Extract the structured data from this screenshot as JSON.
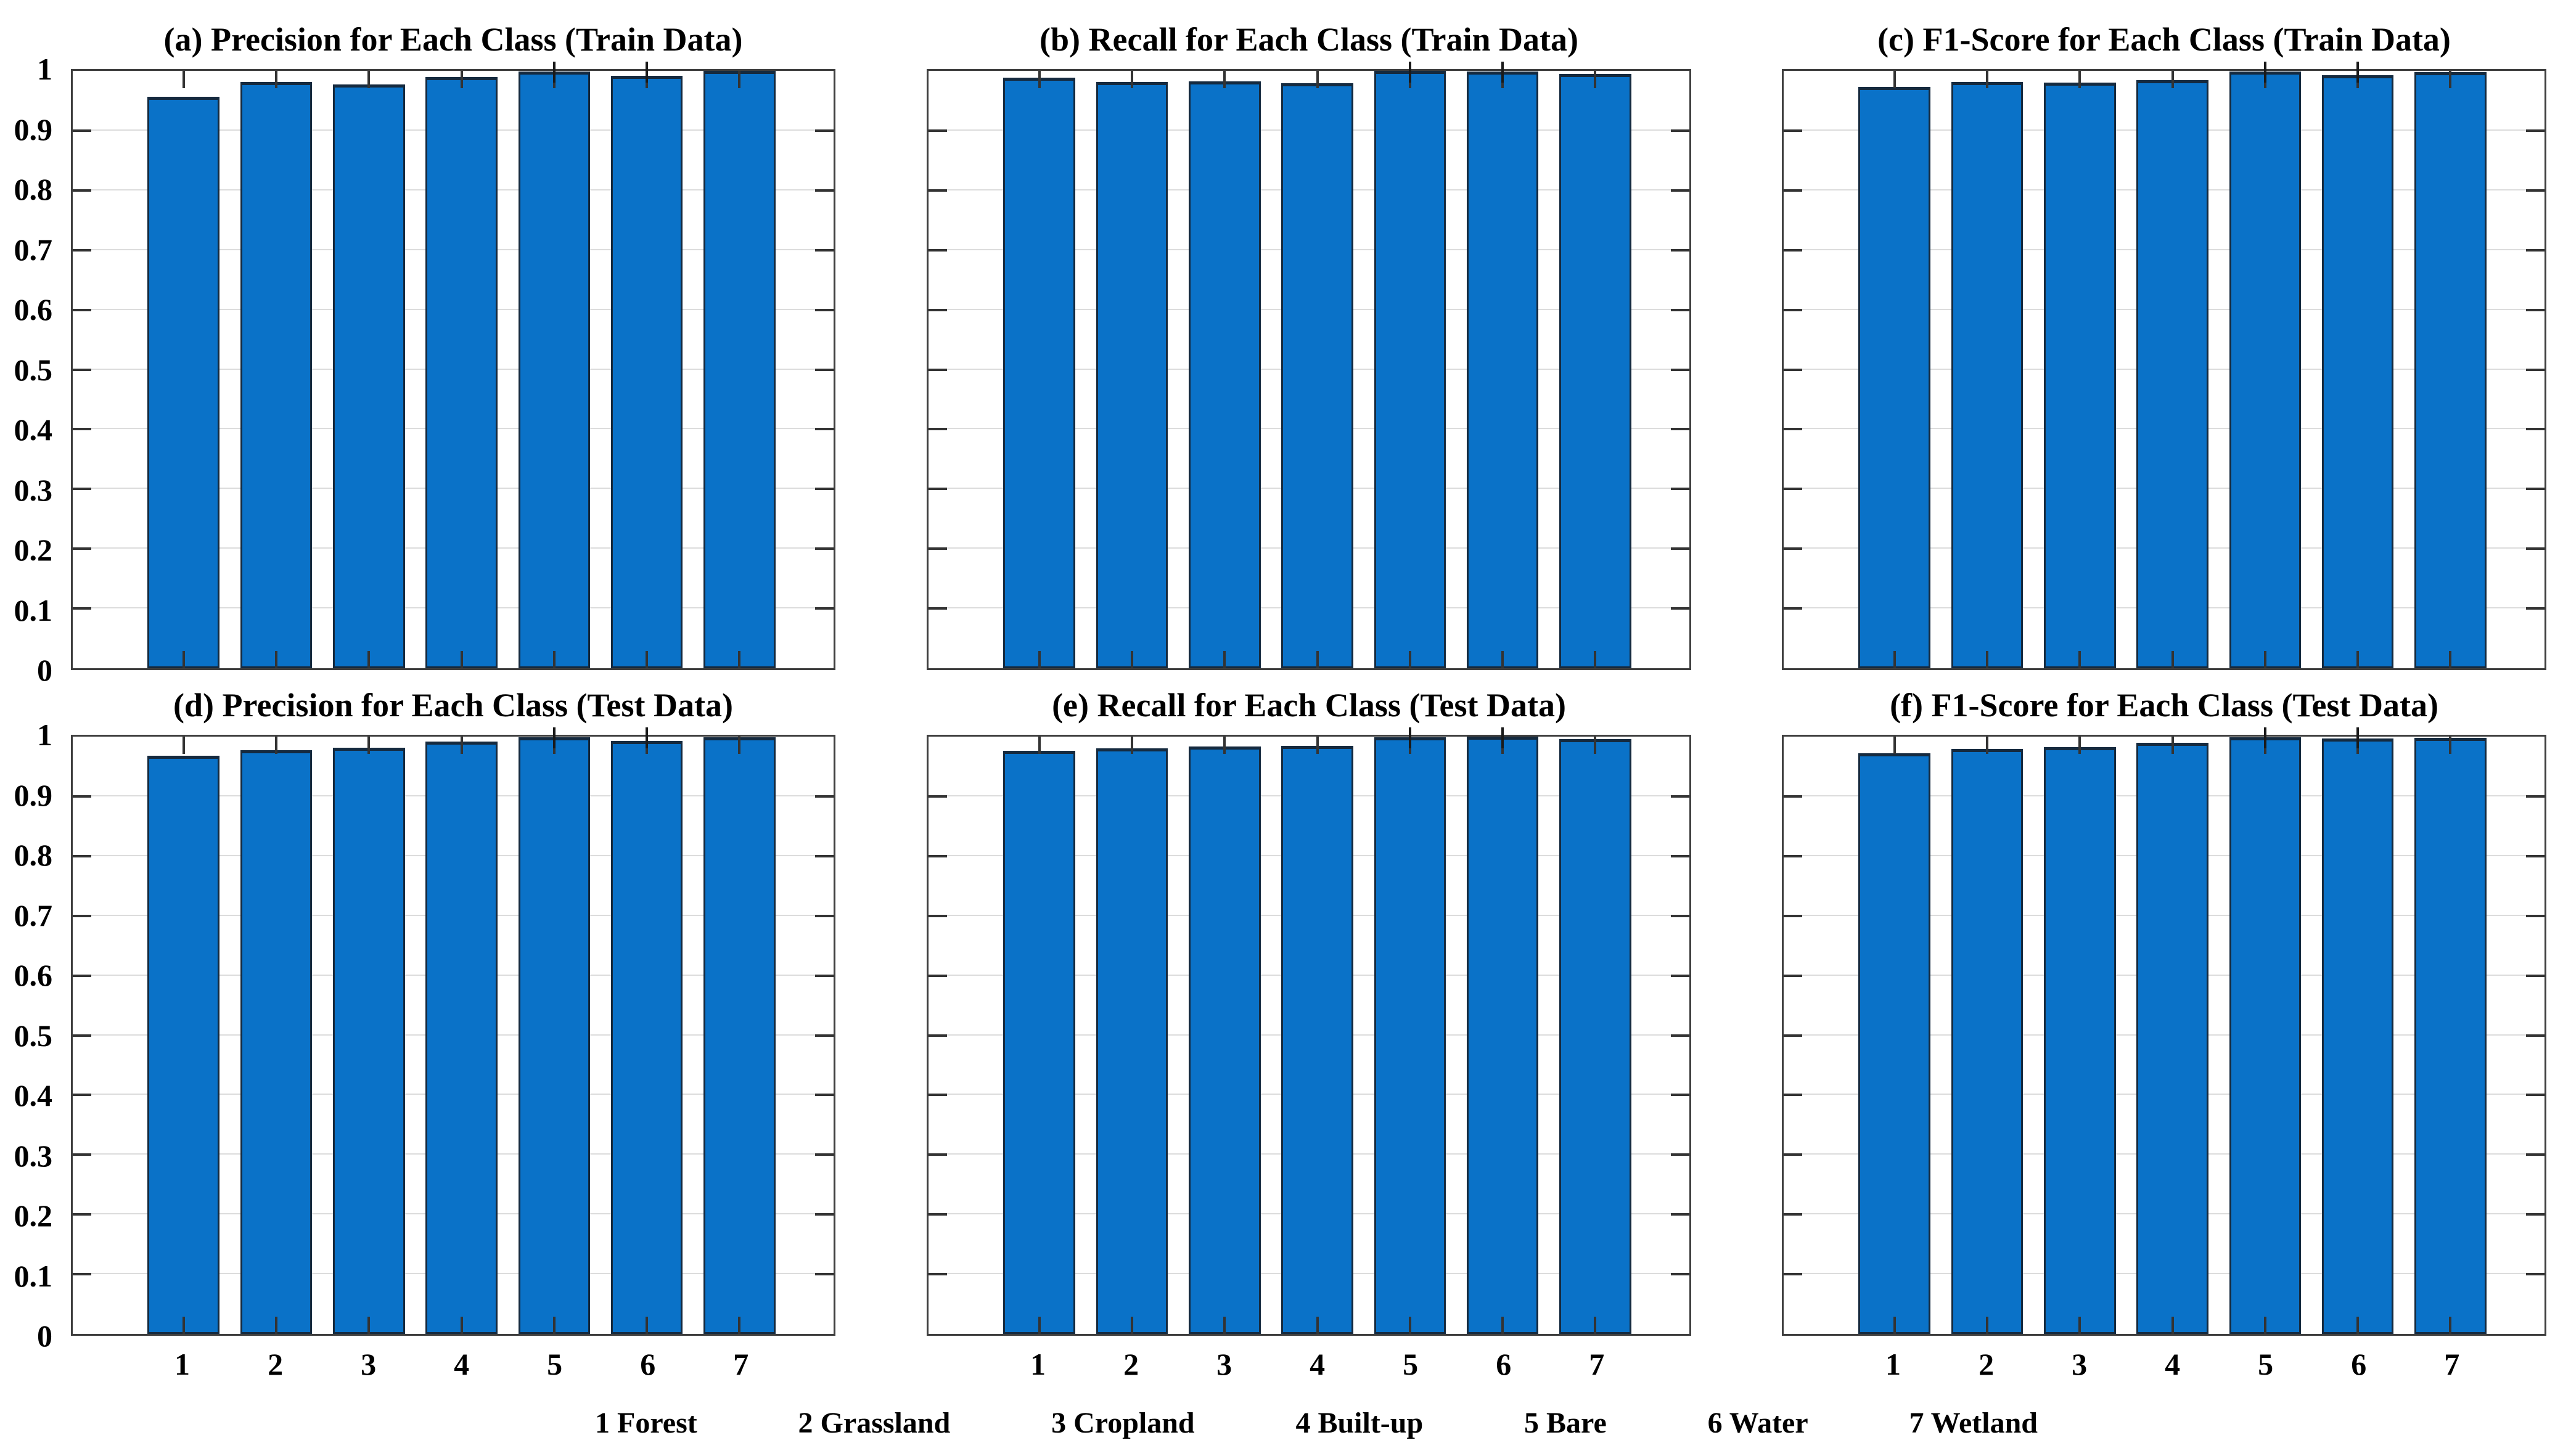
{
  "figure": {
    "background": "#ffffff",
    "colors": {
      "bar_fill": "#0a72c8",
      "bar_edge": "#152a3f",
      "axis": "#3f3f3f",
      "grid": "#dcdcdc",
      "tick": "#333333",
      "text": "#000000"
    }
  },
  "chart_data": {
    "type": "bar",
    "layout": "2 rows x 3 columns of subplots",
    "grid": "horizontal gridlines at 0.1 intervals, box on, inward ticks on all four edges",
    "legend_position": "bottom, single row of class labels",
    "categories": [
      "1",
      "2",
      "3",
      "4",
      "5",
      "6",
      "7"
    ],
    "y_tick_labels": [
      "1",
      "0.9",
      "0.8",
      "0.7",
      "0.6",
      "0.5",
      "0.4",
      "0.3",
      "0.2",
      "0.1",
      "0"
    ],
    "ylim": [
      0,
      1
    ],
    "error_whiskers_visible_above_axis_at_bars": [
      5,
      6
    ],
    "charts": [
      {
        "id": "a",
        "title": "(a) Precision for Each Class (Train Data)",
        "metric": "Precision",
        "split": "Train Data",
        "values": [
          0.957,
          0.981,
          0.977,
          0.99,
          0.999,
          0.992,
          1.0
        ],
        "show_y_tick_labels": true,
        "show_x_tick_labels": false
      },
      {
        "id": "b",
        "title": "(b) Recall for Each Class (Train Data)",
        "metric": "Recall",
        "split": "Train Data",
        "values": [
          0.989,
          0.981,
          0.982,
          0.979,
          1.0,
          0.999,
          0.995
        ],
        "show_y_tick_labels": false,
        "show_x_tick_labels": false
      },
      {
        "id": "c",
        "title": "(c) F1-Score for Each Class (Train Data)",
        "metric": "F1-Score",
        "split": "Train Data",
        "values": [
          0.973,
          0.981,
          0.98,
          0.985,
          0.999,
          0.993,
          0.998
        ],
        "show_y_tick_labels": false,
        "show_x_tick_labels": false
      },
      {
        "id": "d",
        "title": "(d) Precision for Each Class (Test Data)",
        "metric": "Precision",
        "split": "Test Data",
        "values": [
          0.968,
          0.977,
          0.981,
          0.992,
          0.999,
          0.993,
          0.999
        ],
        "show_y_tick_labels": true,
        "show_x_tick_labels": true
      },
      {
        "id": "e",
        "title": "(e) Recall for Each Class (Test Data)",
        "metric": "Recall",
        "split": "Test Data",
        "values": [
          0.976,
          0.98,
          0.983,
          0.985,
          0.999,
          1.0,
          0.996
        ],
        "show_y_tick_labels": false,
        "show_x_tick_labels": true
      },
      {
        "id": "f",
        "title": "(f) F1-Score for Each Class (Test Data)",
        "metric": "F1-Score",
        "split": "Test Data",
        "values": [
          0.972,
          0.979,
          0.982,
          0.99,
          0.999,
          0.997,
          0.998
        ],
        "show_y_tick_labels": false,
        "show_x_tick_labels": true
      }
    ],
    "class_legend": [
      "1 Forest",
      "2 Grassland",
      "3 Cropland",
      "4 Built-up",
      "5 Bare",
      "6 Water",
      "7 Wetland"
    ]
  }
}
